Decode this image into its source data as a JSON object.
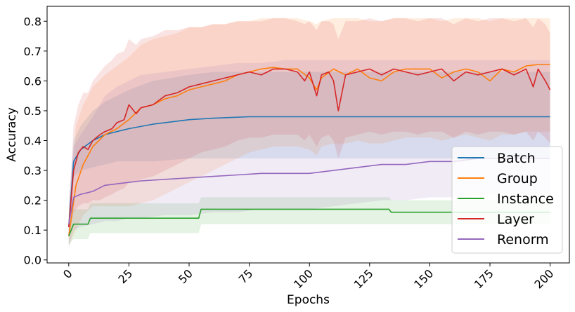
{
  "chart_data": {
    "type": "line",
    "xlabel": "Epochs",
    "ylabel": "Accuracy",
    "xlim": [
      -9,
      208
    ],
    "ylim": [
      -0.01,
      0.85
    ],
    "xticks": [
      0,
      25,
      50,
      75,
      100,
      125,
      150,
      175,
      200
    ],
    "yticks": [
      0.0,
      0.1,
      0.2,
      0.3,
      0.4,
      0.5,
      0.6,
      0.7,
      0.8
    ],
    "xtick_labels": [
      "0",
      "25",
      "50",
      "75",
      "100",
      "125",
      "150",
      "175",
      "200"
    ],
    "ytick_labels": [
      "0.0",
      "0.1",
      "0.2",
      "0.3",
      "0.4",
      "0.5",
      "0.6",
      "0.7",
      "0.8"
    ],
    "grid": false,
    "legend_position": "bottom-right",
    "shaded_bands": true,
    "series": [
      {
        "name": "Batch",
        "color": "#1f77b4",
        "x": [
          0,
          2,
          5,
          10,
          15,
          20,
          25,
          35,
          50,
          60,
          75,
          100,
          125,
          150,
          175,
          200
        ],
        "y": [
          0.11,
          0.33,
          0.37,
          0.4,
          0.42,
          0.43,
          0.44,
          0.455,
          0.47,
          0.475,
          0.48,
          0.48,
          0.48,
          0.48,
          0.48,
          0.48
        ],
        "lower": [
          0.08,
          0.28,
          0.3,
          0.31,
          0.32,
          0.33,
          0.33,
          0.33,
          0.34,
          0.34,
          0.34,
          0.34,
          0.34,
          0.34,
          0.34,
          0.34
        ],
        "upper": [
          0.15,
          0.4,
          0.45,
          0.5,
          0.53,
          0.55,
          0.57,
          0.6,
          0.62,
          0.63,
          0.63,
          0.63,
          0.63,
          0.63,
          0.63,
          0.63
        ]
      },
      {
        "name": "Group",
        "color": "#ff7f0e",
        "x": [
          0,
          3,
          6,
          10,
          15,
          20,
          25,
          30,
          35,
          40,
          45,
          50,
          55,
          60,
          65,
          70,
          75,
          80,
          85,
          90,
          95,
          100,
          103,
          105,
          110,
          115,
          120,
          125,
          130,
          135,
          140,
          145,
          150,
          155,
          160,
          165,
          170,
          175,
          180,
          185,
          190,
          195,
          200
        ],
        "y": [
          0.08,
          0.25,
          0.32,
          0.38,
          0.42,
          0.44,
          0.47,
          0.51,
          0.52,
          0.54,
          0.55,
          0.57,
          0.58,
          0.59,
          0.6,
          0.62,
          0.63,
          0.64,
          0.645,
          0.64,
          0.64,
          0.61,
          0.57,
          0.61,
          0.64,
          0.62,
          0.64,
          0.61,
          0.6,
          0.63,
          0.64,
          0.64,
          0.64,
          0.61,
          0.63,
          0.64,
          0.63,
          0.6,
          0.64,
          0.63,
          0.65,
          0.655,
          0.655
        ],
        "lower": [
          0.05,
          0.1,
          0.15,
          0.18,
          0.18,
          0.18,
          0.18,
          0.19,
          0.2,
          0.22,
          0.24,
          0.26,
          0.28,
          0.3,
          0.32,
          0.34,
          0.36,
          0.37,
          0.38,
          0.38,
          0.38,
          0.37,
          0.35,
          0.38,
          0.39,
          0.39,
          0.4,
          0.39,
          0.39,
          0.4,
          0.41,
          0.41,
          0.41,
          0.4,
          0.41,
          0.42,
          0.41,
          0.4,
          0.42,
          0.42,
          0.43,
          0.43,
          0.43
        ],
        "upper": [
          0.12,
          0.45,
          0.52,
          0.58,
          0.62,
          0.65,
          0.68,
          0.72,
          0.74,
          0.75,
          0.76,
          0.78,
          0.78,
          0.79,
          0.79,
          0.8,
          0.8,
          0.81,
          0.81,
          0.81,
          0.81,
          0.8,
          0.79,
          0.8,
          0.81,
          0.81,
          0.81,
          0.8,
          0.8,
          0.81,
          0.81,
          0.81,
          0.81,
          0.8,
          0.81,
          0.81,
          0.81,
          0.8,
          0.81,
          0.81,
          0.81,
          0.81,
          0.81
        ]
      },
      {
        "name": "Instance",
        "color": "#2ca02c",
        "x": [
          0,
          1,
          2,
          8,
          9,
          54,
          55,
          133,
          134,
          200
        ],
        "y": [
          0.08,
          0.1,
          0.12,
          0.12,
          0.14,
          0.14,
          0.17,
          0.17,
          0.16,
          0.16
        ],
        "lower": [
          0.05,
          0.06,
          0.07,
          0.07,
          0.09,
          0.09,
          0.12,
          0.12,
          0.12,
          0.12
        ],
        "upper": [
          0.11,
          0.14,
          0.17,
          0.17,
          0.19,
          0.19,
          0.21,
          0.21,
          0.2,
          0.2
        ]
      },
      {
        "name": "Layer",
        "color": "#d62728",
        "x": [
          0,
          2,
          4,
          6,
          8,
          10,
          13,
          15,
          18,
          20,
          23,
          25,
          28,
          30,
          35,
          40,
          45,
          50,
          55,
          60,
          65,
          70,
          75,
          80,
          85,
          90,
          95,
          98,
          100,
          103,
          105,
          108,
          110,
          112,
          115,
          120,
          125,
          130,
          135,
          140,
          145,
          150,
          155,
          160,
          165,
          170,
          175,
          180,
          185,
          190,
          193,
          195,
          198,
          200
        ],
        "y": [
          0.11,
          0.3,
          0.36,
          0.38,
          0.37,
          0.4,
          0.42,
          0.43,
          0.44,
          0.46,
          0.47,
          0.52,
          0.49,
          0.51,
          0.52,
          0.55,
          0.56,
          0.58,
          0.59,
          0.6,
          0.61,
          0.62,
          0.63,
          0.62,
          0.64,
          0.64,
          0.63,
          0.6,
          0.63,
          0.55,
          0.62,
          0.63,
          0.6,
          0.5,
          0.62,
          0.63,
          0.64,
          0.62,
          0.64,
          0.63,
          0.62,
          0.63,
          0.64,
          0.6,
          0.63,
          0.62,
          0.63,
          0.64,
          0.62,
          0.64,
          0.58,
          0.64,
          0.6,
          0.57
        ],
        "lower": [
          0.07,
          0.16,
          0.18,
          0.19,
          0.19,
          0.2,
          0.2,
          0.21,
          0.22,
          0.23,
          0.24,
          0.26,
          0.26,
          0.27,
          0.28,
          0.3,
          0.32,
          0.34,
          0.36,
          0.37,
          0.38,
          0.4,
          0.41,
          0.41,
          0.42,
          0.42,
          0.42,
          0.4,
          0.42,
          0.38,
          0.41,
          0.42,
          0.4,
          0.34,
          0.41,
          0.42,
          0.43,
          0.42,
          0.43,
          0.43,
          0.42,
          0.43,
          0.43,
          0.41,
          0.43,
          0.42,
          0.43,
          0.43,
          0.42,
          0.43,
          0.4,
          0.43,
          0.41,
          0.39
        ],
        "upper": [
          0.15,
          0.45,
          0.52,
          0.56,
          0.56,
          0.6,
          0.63,
          0.65,
          0.67,
          0.69,
          0.7,
          0.74,
          0.72,
          0.74,
          0.75,
          0.77,
          0.77,
          0.78,
          0.78,
          0.79,
          0.79,
          0.8,
          0.8,
          0.8,
          0.81,
          0.81,
          0.8,
          0.79,
          0.8,
          0.77,
          0.8,
          0.8,
          0.79,
          0.74,
          0.8,
          0.8,
          0.81,
          0.8,
          0.81,
          0.81,
          0.8,
          0.81,
          0.81,
          0.79,
          0.81,
          0.8,
          0.81,
          0.81,
          0.8,
          0.81,
          0.78,
          0.81,
          0.79,
          0.76
        ]
      },
      {
        "name": "Renorm",
        "color": "#9467bd",
        "x": [
          0,
          2,
          5,
          10,
          15,
          20,
          25,
          30,
          40,
          50,
          60,
          70,
          80,
          90,
          100,
          110,
          120,
          130,
          140,
          150,
          160,
          170,
          180,
          190,
          200
        ],
        "y": [
          0.12,
          0.21,
          0.22,
          0.23,
          0.25,
          0.255,
          0.26,
          0.265,
          0.27,
          0.275,
          0.28,
          0.285,
          0.29,
          0.29,
          0.29,
          0.3,
          0.31,
          0.32,
          0.32,
          0.33,
          0.33,
          0.34,
          0.34,
          0.34,
          0.34
        ],
        "lower": [
          0.04,
          0.1,
          0.11,
          0.12,
          0.13,
          0.13,
          0.14,
          0.14,
          0.15,
          0.15,
          0.16,
          0.16,
          0.17,
          0.17,
          0.17,
          0.18,
          0.19,
          0.2,
          0.2,
          0.21,
          0.21,
          0.22,
          0.22,
          0.22,
          0.22
        ],
        "upper": [
          0.2,
          0.38,
          0.42,
          0.48,
          0.55,
          0.58,
          0.6,
          0.62,
          0.63,
          0.64,
          0.65,
          0.66,
          0.66,
          0.67,
          0.67,
          0.67,
          0.67,
          0.67,
          0.67,
          0.67,
          0.67,
          0.67,
          0.67,
          0.67,
          0.67
        ]
      }
    ]
  }
}
